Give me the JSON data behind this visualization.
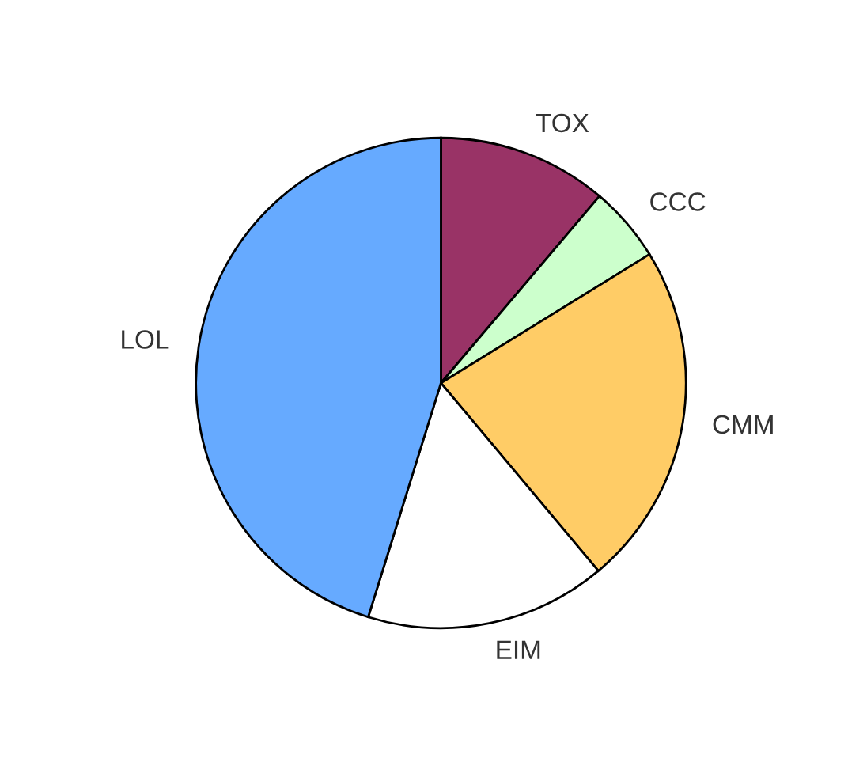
{
  "chart_data": {
    "type": "pie",
    "categories": [
      "TOX",
      "CCC",
      "CMM",
      "EIM",
      "LOL"
    ],
    "values": [
      11.2,
      5.0,
      22.7,
      15.9,
      45.2
    ],
    "colors": [
      "#993366",
      "#ccffcc",
      "#ffcc66",
      "#ffffff",
      "#66aaff"
    ],
    "legend": false
  }
}
